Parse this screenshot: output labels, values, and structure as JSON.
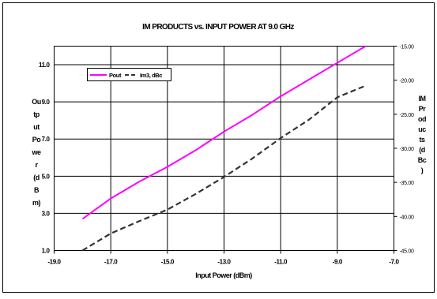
{
  "chart_data": {
    "type": "line",
    "title": "IM PRODUCTS vs. INPUT POWER AT 9.0 GHz",
    "xlabel": "Input Power (dBm)",
    "ylabel": [
      "Ou",
      "tp",
      "ut",
      "Po",
      "we",
      "r",
      "(d",
      "B",
      "m)"
    ],
    "y2label": [
      "IM",
      "Pr",
      "od",
      "uc",
      "ts",
      "(d",
      "Bc",
      ")"
    ],
    "xlim": [
      -19,
      -7
    ],
    "ylim": [
      1,
      12
    ],
    "y2lim": [
      -45,
      -15
    ],
    "x_ticks": [
      "-19.0",
      "-17.0",
      "-15.0",
      "-13.0",
      "-11.0",
      "-9.0",
      "-7.0"
    ],
    "y_ticks": [
      "1.0",
      "3.0",
      "5.0",
      "7.0",
      "9.0",
      "11.0"
    ],
    "y2_ticks": [
      "-15.00",
      "-20.00",
      "-25.00",
      "-30.00",
      "-35.00",
      "-40.00",
      "-45.00"
    ],
    "grid": true,
    "legend_position": "top-left",
    "series": [
      {
        "name": "Pout",
        "axis": "left",
        "color": "#ff00ff",
        "style": "solid",
        "x": [
          -18,
          -17,
          -16,
          -15,
          -14,
          -13,
          -12,
          -11,
          -10,
          -9,
          -8
        ],
        "y": [
          2.7,
          3.8,
          4.7,
          5.5,
          6.4,
          7.4,
          8.3,
          9.3,
          10.2,
          11.1,
          12.0
        ]
      },
      {
        "name": "Im3, dBc",
        "axis": "right",
        "color": "#333333",
        "style": "dashed",
        "x": [
          -18,
          -17,
          -16,
          -15,
          -14,
          -13,
          -12,
          -11,
          -10,
          -9,
          -8
        ],
        "y": [
          -45.0,
          -42.5,
          -40.7,
          -39.0,
          -36.7,
          -34.2,
          -31.5,
          -28.5,
          -25.8,
          -22.5,
          -20.8
        ]
      }
    ]
  }
}
